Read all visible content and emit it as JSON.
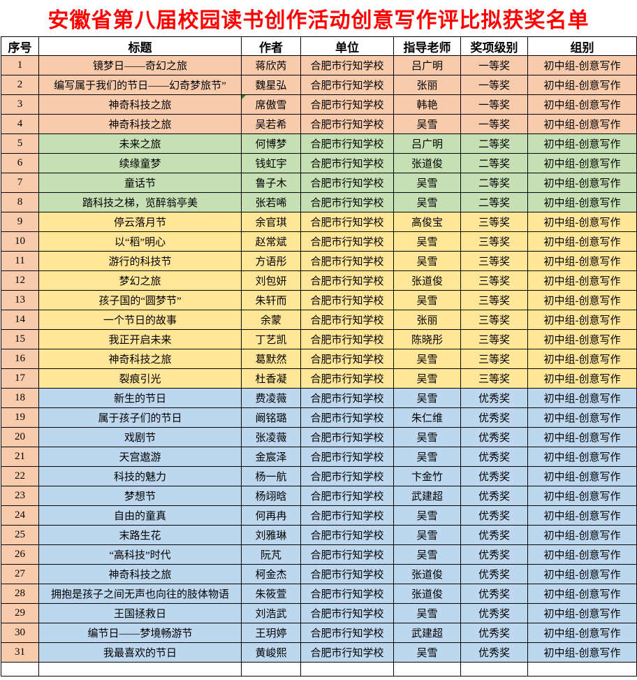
{
  "title": "安徽省第八届校园读书创作活动创意写作评比拟获奖名单",
  "columns": [
    "序号",
    "标题",
    "作者",
    "单位",
    "指导老师",
    "奖项级别",
    "组别"
  ],
  "colors": {
    "title_text": "#FF0000",
    "border": "#000000",
    "index_column": "#F8CBAD",
    "bands": {
      "first": "#F8CBAD",
      "second": "#C6E0B4",
      "third": "#FFE699",
      "excellent": "#BDD7EE"
    },
    "error_indicator": "#1E8A1E"
  },
  "rows": [
    {
      "no": "1",
      "title": "镜梦日——奇幻之旅",
      "author": "蒋欣芮",
      "unit": "合肥市行知学校",
      "advisor": "吕广明",
      "award": "一等奖",
      "group": "初中组-创意写作",
      "band": "first",
      "error_marker": false
    },
    {
      "no": "2",
      "title": "编写属于我们的节日——幻奇梦旅节”",
      "author": "魏星弘",
      "unit": "合肥市行知学校",
      "advisor": "张丽",
      "award": "一等奖",
      "group": "初中组-创意写作",
      "band": "first",
      "error_marker": false
    },
    {
      "no": "3",
      "title": "神奇科技之旅",
      "author": "席傲雪",
      "unit": "合肥市行知学校",
      "advisor": "韩艳",
      "award": "一等奖",
      "group": "初中组-创意写作",
      "band": "first",
      "error_marker": true
    },
    {
      "no": "4",
      "title": "神奇科技之旅",
      "author": "吴若希",
      "unit": "合肥市行知学校",
      "advisor": "吴雪",
      "award": "一等奖",
      "group": "初中组-创意写作",
      "band": "first",
      "error_marker": false
    },
    {
      "no": "5",
      "title": "未来之旅",
      "author": "何博梦",
      "unit": "合肥市行知学校",
      "advisor": "吕广明",
      "award": "二等奖",
      "group": "初中组-创意写作",
      "band": "second",
      "error_marker": false
    },
    {
      "no": "6",
      "title": "续缘童梦",
      "author": "钱虹宇",
      "unit": "合肥市行知学校",
      "advisor": "张道俊",
      "award": "二等奖",
      "group": "初中组-创意写作",
      "band": "second",
      "error_marker": false
    },
    {
      "no": "7",
      "title": "童话节",
      "author": "鲁子木",
      "unit": "合肥市行知学校",
      "advisor": "吴雪",
      "award": "二等奖",
      "group": "初中组-创意写作",
      "band": "second",
      "error_marker": false
    },
    {
      "no": "8",
      "title": "踏科技之梯，览醉翁亭美",
      "author": "张若唏",
      "unit": "合肥市行知学校",
      "advisor": "吴雪",
      "award": "二等奖",
      "group": "初中组-创意写作",
      "band": "second",
      "error_marker": false
    },
    {
      "no": "9",
      "title": "停云落月节",
      "author": "余官琪",
      "unit": "合肥市行知学校",
      "advisor": "高俊宝",
      "award": "三等奖",
      "group": "初中组-创意写作",
      "band": "third",
      "error_marker": false
    },
    {
      "no": "10",
      "title": "以“稻”明心",
      "author": "赵常斌",
      "unit": "合肥市行知学校",
      "advisor": "吴雪",
      "award": "三等奖",
      "group": "初中组-创意写作",
      "band": "third",
      "error_marker": false
    },
    {
      "no": "11",
      "title": "游行的科技节",
      "author": "方语彤",
      "unit": "合肥市行知学校",
      "advisor": "吴雪",
      "award": "三等奖",
      "group": "初中组-创意写作",
      "band": "third",
      "error_marker": false
    },
    {
      "no": "12",
      "title": "梦幻之旅",
      "author": "刘包妍",
      "unit": "合肥市行知学校",
      "advisor": "张道俊",
      "award": "三等奖",
      "group": "初中组-创意写作",
      "band": "third",
      "error_marker": false
    },
    {
      "no": "13",
      "title": "孩子国的“圆梦节”",
      "author": "朱轩而",
      "unit": "合肥市行知学校",
      "advisor": "吴雪",
      "award": "三等奖",
      "group": "初中组-创意写作",
      "band": "third",
      "error_marker": false
    },
    {
      "no": "14",
      "title": "一个节日的故事",
      "author": "余蒙",
      "unit": "合肥市行知学校",
      "advisor": "张丽",
      "award": "三等奖",
      "group": "初中组-创意写作",
      "band": "third",
      "error_marker": false
    },
    {
      "no": "15",
      "title": "我正开启未来",
      "author": "丁艺凯",
      "unit": "合肥市行知学校",
      "advisor": "陈晓彤",
      "award": "三等奖",
      "group": "初中组-创意写作",
      "band": "third",
      "error_marker": false
    },
    {
      "no": "16",
      "title": "神奇科技之旅",
      "author": "葛默然",
      "unit": "合肥市行知学校",
      "advisor": "吴雪",
      "award": "三等奖",
      "group": "初中组-创意写作",
      "band": "third",
      "error_marker": false
    },
    {
      "no": "17",
      "title": "裂痕引光",
      "author": "杜香凝",
      "unit": "合肥市行知学校",
      "advisor": "吴雪",
      "award": "三等奖",
      "group": "初中组-创意写作",
      "band": "third",
      "error_marker": false
    },
    {
      "no": "18",
      "title": "新生的节日",
      "author": "费凌薇",
      "unit": "合肥市行知学校",
      "advisor": "吴雪",
      "award": "优秀奖",
      "group": "初中组-创意写作",
      "band": "excellent",
      "error_marker": false
    },
    {
      "no": "19",
      "title": "属于孩子们的节日",
      "author": "阚铭璐",
      "unit": "合肥市行知学校",
      "advisor": "朱仁维",
      "award": "优秀奖",
      "group": "初中组-创意写作",
      "band": "excellent",
      "error_marker": false
    },
    {
      "no": "20",
      "title": "戏剧节",
      "author": "张凌薇",
      "unit": "合肥市行知学校",
      "advisor": "吴雪",
      "award": "优秀奖",
      "group": "初中组-创意写作",
      "band": "excellent",
      "error_marker": false
    },
    {
      "no": "21",
      "title": "天宫遨游",
      "author": "金宸泽",
      "unit": "合肥市行知学校",
      "advisor": "吴雪",
      "award": "优秀奖",
      "group": "初中组-创意写作",
      "band": "excellent",
      "error_marker": false
    },
    {
      "no": "22",
      "title": "科技的魅力",
      "author": "杨一航",
      "unit": "合肥市行知学校",
      "advisor": "卞金竹",
      "award": "优秀奖",
      "group": "初中组-创意写作",
      "band": "excellent",
      "error_marker": false
    },
    {
      "no": "23",
      "title": "梦想节",
      "author": "杨翊晗",
      "unit": "合肥市行知学校",
      "advisor": "武建超",
      "award": "优秀奖",
      "group": "初中组-创意写作",
      "band": "excellent",
      "error_marker": false
    },
    {
      "no": "24",
      "title": "自由的童真",
      "author": "何再冉",
      "unit": "合肥市行知学校",
      "advisor": "吴雪",
      "award": "优秀奖",
      "group": "初中组-创意写作",
      "band": "excellent",
      "error_marker": false
    },
    {
      "no": "25",
      "title": "末路生花",
      "author": "刘雅琳",
      "unit": "合肥市行知学校",
      "advisor": "吴雪",
      "award": "优秀奖",
      "group": "初中组-创意写作",
      "band": "excellent",
      "error_marker": false
    },
    {
      "no": "26",
      "title": "“高科技”时代",
      "author": "阮芃",
      "unit": "合肥市行知学校",
      "advisor": "吴雪",
      "award": "优秀奖",
      "group": "初中组-创意写作",
      "band": "excellent",
      "error_marker": false
    },
    {
      "no": "27",
      "title": "神奇科技之旅",
      "author": "柯金杰",
      "unit": "合肥市行知学校",
      "advisor": "张道俊",
      "award": "优秀奖",
      "group": "初中组-创意写作",
      "band": "excellent",
      "error_marker": false
    },
    {
      "no": "28",
      "title": "拥抱是孩子之间无声也向往的肢体物语",
      "author": "朱筱萱",
      "unit": "合肥市行知学校",
      "advisor": "张道俊",
      "award": "优秀奖",
      "group": "初中组-创意写作",
      "band": "excellent",
      "error_marker": false
    },
    {
      "no": "29",
      "title": "王国拯救日",
      "author": "刘浩武",
      "unit": "合肥市行知学校",
      "advisor": "吴雪",
      "award": "优秀奖",
      "group": "初中组-创意写作",
      "band": "excellent",
      "error_marker": false
    },
    {
      "no": "30",
      "title": "编节日——梦境畅游节",
      "author": "王玥婷",
      "unit": "合肥市行知学校",
      "advisor": "武建超",
      "award": "优秀奖",
      "group": "初中组-创意写作",
      "band": "excellent",
      "error_marker": false
    },
    {
      "no": "31",
      "title": "我最喜欢的节日",
      "author": "黄峻熙",
      "unit": "合肥市行知学校",
      "advisor": "吴雪",
      "award": "优秀奖",
      "group": "初中组-创意写作",
      "band": "excellent",
      "error_marker": false
    }
  ],
  "trailing_empty_row": true
}
